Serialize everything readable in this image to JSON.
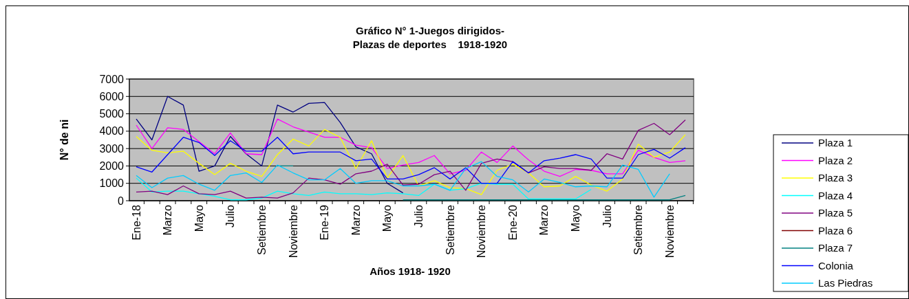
{
  "chart_data": {
    "type": "line",
    "title": "Gráfico N° 1-Juegos dirigidos-\nPlazas de deportes    1918-1920",
    "xlabel": "Años 1918- 1920",
    "ylabel": "N°  de ni",
    "categories": [
      "Ene-18",
      null,
      "Marzo",
      null,
      "Mayo",
      null,
      "Julio",
      null,
      "Setiembre",
      null,
      "Noviembre",
      null,
      "Ene-19",
      null,
      "Marzo",
      null,
      "Mayo",
      null,
      "Julio",
      null,
      "Setiembre",
      null,
      "Noviembre",
      null,
      "Ene-20",
      null,
      "Marzo",
      null,
      "Mayo",
      null,
      "Julio",
      null,
      "Setiembre",
      null,
      "Noviembre",
      null
    ],
    "ylim": [
      0,
      7000
    ],
    "yticks": [
      0,
      1000,
      2000,
      3000,
      4000,
      5000,
      6000,
      7000
    ],
    "grid": "y",
    "legend": "right",
    "marker": "none",
    "line_style": "solid",
    "series": [
      {
        "name": "Plaza 1",
        "color": "#000080",
        "values": [
          4700,
          3500,
          6000,
          5500,
          1700,
          2000,
          3700,
          2700,
          2000,
          5500,
          5100,
          5600,
          5650,
          4500,
          3100,
          2700,
          1000,
          450,
          null,
          null,
          null,
          null,
          null,
          null,
          null,
          null,
          null,
          null,
          null,
          null,
          null,
          null,
          null,
          null,
          null,
          null
        ]
      },
      {
        "name": "Plaza 2",
        "color": "#ff00ff",
        "values": [
          4350,
          3000,
          4200,
          4100,
          3400,
          2700,
          3900,
          2700,
          2650,
          4700,
          4250,
          3950,
          3650,
          3650,
          3200,
          3050,
          1850,
          2050,
          2200,
          2600,
          1550,
          1750,
          2800,
          2200,
          3150,
          2350,
          1700,
          1400,
          1800,
          1750,
          1550,
          1550,
          2900,
          2500,
          2200,
          2300
        ]
      },
      {
        "name": "Plaza 3",
        "color": "#ffff00",
        "values": [
          3700,
          2900,
          2750,
          2850,
          2150,
          1500,
          2150,
          1700,
          1400,
          2650,
          3550,
          3150,
          4100,
          3650,
          1850,
          3450,
          1300,
          2600,
          850,
          1150,
          750,
          700,
          350,
          1750,
          2100,
          1600,
          800,
          850,
          1400,
          900,
          550,
          1250,
          3250,
          2500,
          2800,
          3800
        ]
      },
      {
        "name": "Plaza 4",
        "color": "#00ffff",
        "values": [
          1300,
          500,
          550,
          550,
          400,
          250,
          50,
          50,
          150,
          550,
          400,
          300,
          500,
          400,
          400,
          350,
          450,
          400,
          300,
          950,
          600,
          700,
          1000,
          950,
          950,
          100,
          100,
          100,
          100,
          650,
          null,
          null,
          null,
          null,
          null,
          null
        ]
      },
      {
        "name": "Plaza 5",
        "color": "#800080",
        "values": [
          500,
          550,
          350,
          850,
          400,
          350,
          550,
          150,
          200,
          150,
          450,
          1300,
          1200,
          950,
          1550,
          1700,
          2100,
          900,
          950,
          1500,
          1700,
          600,
          2150,
          2400,
          2250,
          1600,
          1950,
          1850,
          1850,
          1750,
          2700,
          2400,
          4050,
          4450,
          3800,
          4650
        ]
      },
      {
        "name": "Plaza 6",
        "color": "#800000",
        "values": [
          null,
          null,
          null,
          null,
          null,
          null,
          null,
          null,
          null,
          null,
          null,
          null,
          null,
          null,
          null,
          null,
          null,
          null,
          null,
          null,
          null,
          null,
          null,
          null,
          null,
          null,
          null,
          null,
          null,
          null,
          null,
          null,
          null,
          null,
          null,
          null
        ]
      },
      {
        "name": "Plaza 7",
        "color": "#008080",
        "values": [
          null,
          null,
          null,
          null,
          null,
          null,
          null,
          null,
          null,
          2000,
          2000,
          null,
          null,
          null,
          null,
          null,
          null,
          50,
          50,
          50,
          50,
          50,
          50,
          50,
          50,
          50,
          50,
          50,
          50,
          50,
          50,
          50,
          50,
          50,
          50,
          300
        ]
      },
      {
        "name": "Colonia",
        "color": "#0000ff",
        "values": [
          1950,
          1650,
          2650,
          3650,
          3350,
          2600,
          3450,
          2850,
          2850,
          3650,
          2700,
          2800,
          2800,
          2800,
          2300,
          2400,
          1250,
          1250,
          1500,
          1900,
          1250,
          1900,
          1000,
          1000,
          2250,
          1600,
          2300,
          2450,
          2650,
          2400,
          1300,
          1300,
          2650,
          2950,
          2450,
          3050
        ]
      },
      {
        "name": "Las Piedras",
        "color": "#00ccff",
        "values": [
          1450,
          750,
          1300,
          1450,
          950,
          600,
          1450,
          1600,
          1050,
          2050,
          1600,
          1200,
          1200,
          1850,
          1000,
          1150,
          1150,
          850,
          850,
          950,
          600,
          1850,
          2250,
          1400,
          1200,
          500,
          1250,
          1050,
          800,
          850,
          800,
          2050,
          1800,
          200,
          1550,
          null
        ]
      }
    ]
  }
}
